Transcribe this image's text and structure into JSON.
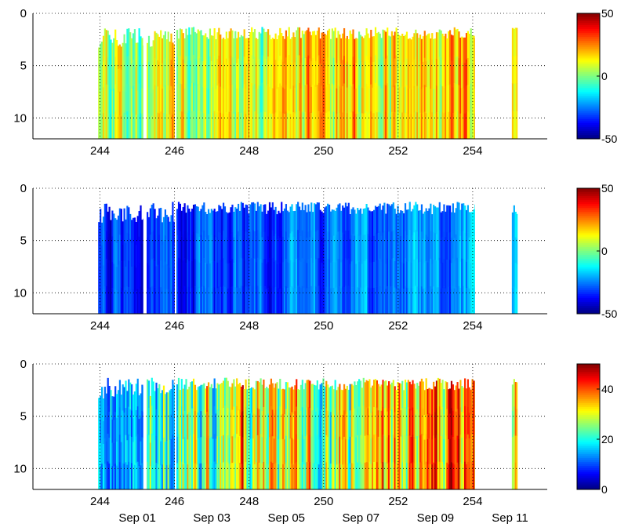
{
  "chart_data": [
    {
      "type": "heatmap",
      "title": "",
      "xlabel": "",
      "ylabel": "",
      "xlim": [
        242.2,
        256.0
      ],
      "ylim": [
        12,
        0
      ],
      "x_ticks": [
        244,
        246,
        248,
        250,
        252,
        254
      ],
      "x_tick_labels": [
        "244",
        "246",
        "248",
        "250",
        "252",
        "254"
      ],
      "y_ticks": [
        0,
        5,
        10
      ],
      "y_tick_labels": [
        "0",
        "5",
        "10"
      ],
      "grid": "dotted",
      "colormap": "jet",
      "colorbar": {
        "range": [
          -50,
          50
        ],
        "ticks": [
          50,
          0,
          -50
        ],
        "tick_labels": [
          "50",
          "0",
          "-50"
        ]
      },
      "data_segments": [
        [
          243.95,
          245.15
        ],
        [
          245.25,
          246.0
        ],
        [
          246.05,
          254.05
        ],
        [
          255.05,
          255.2
        ]
      ],
      "typical_value_range": [
        -15,
        35
      ],
      "colors": {
        "low": "#00008f",
        "mid": "#7fff7f",
        "high": "#800000"
      }
    },
    {
      "type": "heatmap",
      "title": "",
      "xlabel": "",
      "ylabel": "",
      "xlim": [
        242.2,
        256.0
      ],
      "ylim": [
        12,
        0
      ],
      "x_ticks": [
        244,
        246,
        248,
        250,
        252,
        254
      ],
      "x_tick_labels": [
        "244",
        "246",
        "248",
        "250",
        "252",
        "254"
      ],
      "y_ticks": [
        0,
        5,
        10
      ],
      "y_tick_labels": [
        "0",
        "5",
        "10"
      ],
      "grid": "dotted",
      "colormap": "jet",
      "colorbar": {
        "range": [
          -50,
          50
        ],
        "ticks": [
          50,
          0,
          -50
        ],
        "tick_labels": [
          "50",
          "0",
          "-50"
        ]
      },
      "data_segments": [
        [
          243.95,
          245.15
        ],
        [
          245.25,
          246.0
        ],
        [
          246.05,
          254.05
        ],
        [
          255.05,
          255.2
        ]
      ],
      "typical_value_range": [
        -45,
        -15
      ],
      "colors": {
        "low": "#00008f",
        "mid": "#7fff7f",
        "high": "#800000"
      }
    },
    {
      "type": "heatmap",
      "title": "",
      "xlabel": "",
      "ylabel": "",
      "xlim": [
        242.2,
        256.0
      ],
      "ylim": [
        12,
        0
      ],
      "x_ticks": [
        244,
        246,
        248,
        250,
        252,
        254
      ],
      "x_tick_labels": [
        "244",
        "246",
        "248",
        "250",
        "252",
        "254"
      ],
      "date_ticks": [
        245,
        247,
        249,
        251,
        253,
        255
      ],
      "date_tick_labels": [
        "Sep 01",
        "Sep 03",
        "Sep 05",
        "Sep 07",
        "Sep 09",
        "Sep 11"
      ],
      "y_ticks": [
        0,
        5,
        10
      ],
      "y_tick_labels": [
        "0",
        "5",
        "10"
      ],
      "grid": "dotted",
      "colormap": "jet",
      "colorbar": {
        "range": [
          0,
          50
        ],
        "ticks": [
          40,
          20,
          0
        ],
        "tick_labels": [
          "40",
          "20",
          "0"
        ]
      },
      "data_segments": [
        [
          243.95,
          245.15
        ],
        [
          245.25,
          246.0
        ],
        [
          246.05,
          254.05
        ],
        [
          255.05,
          255.2
        ]
      ],
      "typical_value_range": [
        8,
        50
      ],
      "colors": {
        "low": "#00008f",
        "mid": "#7fff7f",
        "high": "#800000"
      }
    }
  ]
}
